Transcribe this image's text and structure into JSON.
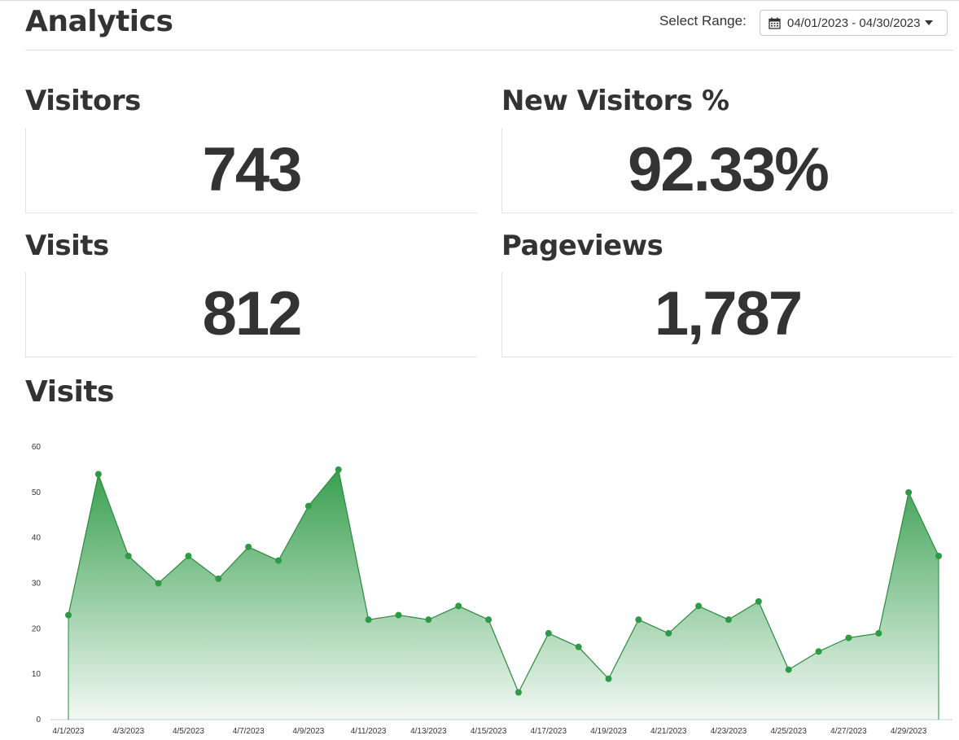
{
  "header": {
    "title": "Analytics",
    "range_label": "Select Range:",
    "range_value": "04/01/2023 - 04/30/2023"
  },
  "stats": {
    "visitors": {
      "label": "Visitors",
      "value": "743"
    },
    "new_visitors_pct": {
      "label": "New Visitors %",
      "value": "92.33%"
    },
    "visits": {
      "label": "Visits",
      "value": "812"
    },
    "pageviews": {
      "label": "Pageviews",
      "value": "1,787"
    }
  },
  "chart_section": {
    "title": "Visits"
  },
  "colors": {
    "accent": "#2e9a46",
    "line": "#2a8a3e"
  },
  "chart_data": {
    "type": "area",
    "title": "Visits",
    "xlabel": "",
    "ylabel": "",
    "ylim": [
      0,
      60
    ],
    "yticks": [
      0,
      10,
      20,
      30,
      40,
      50,
      60
    ],
    "x": [
      "4/1/2023",
      "4/2/2023",
      "4/3/2023",
      "4/4/2023",
      "4/5/2023",
      "4/6/2023",
      "4/7/2023",
      "4/8/2023",
      "4/9/2023",
      "4/10/2023",
      "4/11/2023",
      "4/12/2023",
      "4/13/2023",
      "4/14/2023",
      "4/15/2023",
      "4/16/2023",
      "4/17/2023",
      "4/18/2023",
      "4/19/2023",
      "4/20/2023",
      "4/21/2023",
      "4/22/2023",
      "4/23/2023",
      "4/24/2023",
      "4/25/2023",
      "4/26/2023",
      "4/27/2023",
      "4/28/2023",
      "4/29/2023",
      "4/30/2023"
    ],
    "xtick_labels": [
      "4/1/2023",
      "4/3/2023",
      "4/5/2023",
      "4/7/2023",
      "4/9/2023",
      "4/11/2023",
      "4/13/2023",
      "4/15/2023",
      "4/17/2023",
      "4/19/2023",
      "4/21/2023",
      "4/23/2023",
      "4/25/2023",
      "4/27/2023",
      "4/29/2023"
    ],
    "series": [
      {
        "values": [
          23,
          54,
          36,
          30,
          36,
          31,
          38,
          35,
          47,
          55,
          22,
          23,
          22,
          25,
          22,
          6,
          19,
          16,
          9,
          22,
          19,
          25,
          22,
          26,
          11,
          15,
          18,
          19,
          50,
          36
        ]
      }
    ],
    "grid": false
  }
}
